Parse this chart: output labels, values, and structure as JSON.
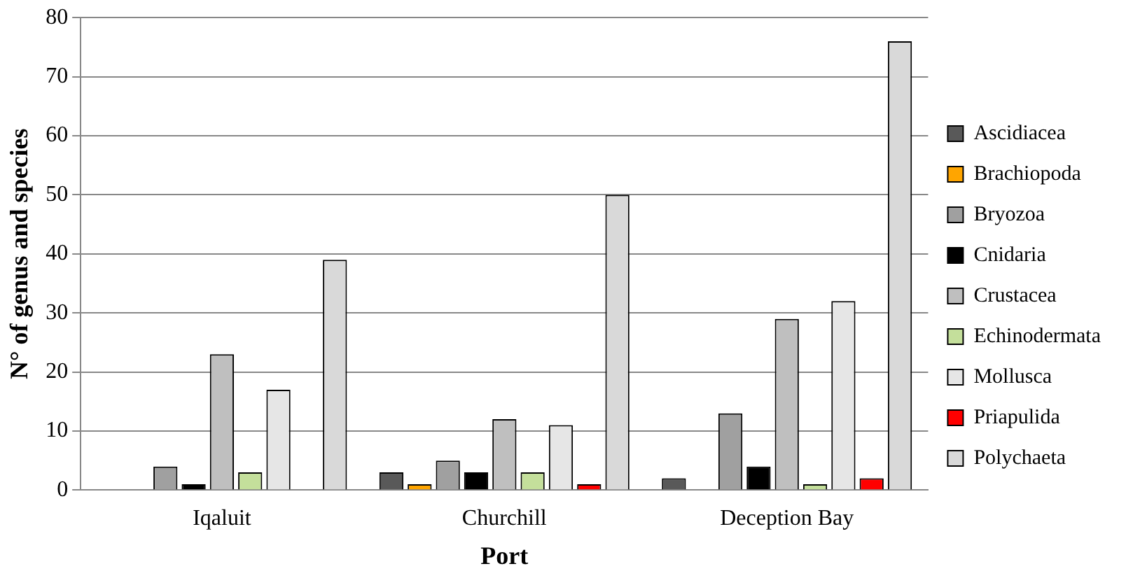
{
  "chart_data": {
    "type": "bar",
    "xlabel": "Port",
    "ylabel": "N° of genus and species",
    "categories": [
      "Iqaluit",
      "Churchill",
      "Deception Bay"
    ],
    "series": [
      {
        "name": "Ascidiacea",
        "color": "#595959",
        "values": [
          0,
          3,
          2
        ]
      },
      {
        "name": "Brachiopoda",
        "color": "#ffa500",
        "values": [
          0,
          1,
          0
        ]
      },
      {
        "name": "Bryozoa",
        "color": "#a0a0a0",
        "values": [
          4,
          5,
          13
        ]
      },
      {
        "name": "Cnidaria",
        "color": "#000000",
        "values": [
          1,
          3,
          4
        ]
      },
      {
        "name": "Crustacea",
        "color": "#bfbfbf",
        "values": [
          23,
          12,
          29
        ]
      },
      {
        "name": "Echinodermata",
        "color": "#c4df9b",
        "values": [
          3,
          3,
          1
        ]
      },
      {
        "name": "Mollusca",
        "color": "#e6e6e6",
        "values": [
          17,
          11,
          32
        ]
      },
      {
        "name": "Priapulida",
        "color": "#ff0000",
        "values": [
          0,
          1,
          2
        ]
      },
      {
        "name": "Polychaeta",
        "color": "#d9d9d9",
        "values": [
          39,
          50,
          76
        ]
      }
    ],
    "ylim": [
      0,
      80
    ],
    "yticks": [
      0,
      10,
      20,
      30,
      40,
      50,
      60,
      70,
      80
    ],
    "grid": "y",
    "legend": "right"
  }
}
